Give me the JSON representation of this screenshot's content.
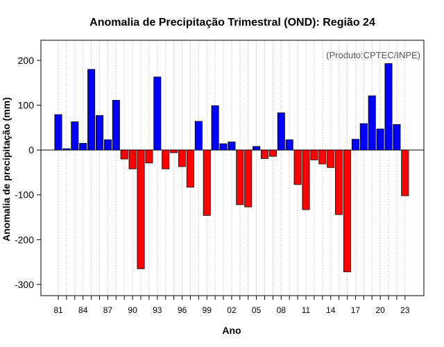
{
  "chart_data": {
    "type": "bar",
    "title": "Anomalia de Precipitação Trimestral (OND): Região 24",
    "annotation": "(Produto:CPTEC/INPE)",
    "xlabel": "Ano",
    "ylabel": "Anomalia de precipitação (mm)",
    "ylim": [
      -325,
      245
    ],
    "yticks": [
      -300,
      -200,
      -100,
      0,
      100,
      200
    ],
    "ytick_labels": [
      "-300",
      "-200",
      "-100",
      "0",
      "100",
      "200"
    ],
    "xtick_labels": [
      "81",
      "84",
      "87",
      "90",
      "93",
      "96",
      "99",
      "02",
      "05",
      "08",
      "11",
      "14",
      "17",
      "20",
      "23"
    ],
    "grid": true,
    "positive_color": "#0000ff",
    "negative_color": "#ff0000",
    "categories": [
      1981,
      1982,
      1983,
      1984,
      1985,
      1986,
      1987,
      1988,
      1989,
      1990,
      1991,
      1992,
      1993,
      1994,
      1995,
      1996,
      1997,
      1998,
      1999,
      2000,
      2001,
      2002,
      2003,
      2004,
      2005,
      2006,
      2007,
      2008,
      2009,
      2010,
      2011,
      2012,
      2013,
      2014,
      2015,
      2016,
      2017,
      2018,
      2019,
      2020,
      2021,
      2022,
      2023
    ],
    "values": [
      79,
      3,
      63,
      15,
      180,
      77,
      23,
      111,
      -20,
      -42,
      -265,
      -29,
      163,
      -42,
      -6,
      -37,
      -83,
      64,
      -146,
      99,
      14,
      18,
      -122,
      -127,
      8,
      -19,
      -14,
      83,
      23,
      -77,
      -133,
      -22,
      -31,
      -39,
      -144,
      -272,
      24,
      59,
      121,
      47,
      193,
      57,
      -102
    ]
  }
}
